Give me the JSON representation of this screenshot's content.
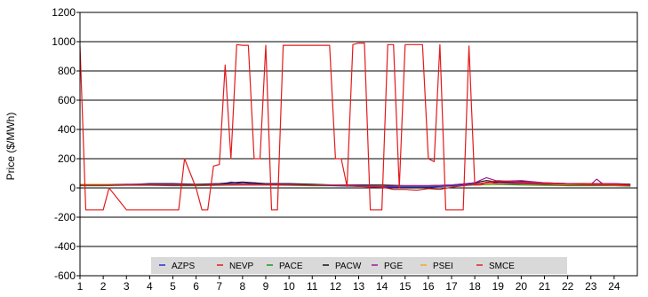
{
  "chart_data": {
    "type": "line",
    "xlabel": "",
    "ylabel": "Price ($/MWh)",
    "ylim": [
      -600,
      1200
    ],
    "yticks": [
      -600,
      -400,
      -200,
      0,
      200,
      400,
      600,
      800,
      1000,
      1200
    ],
    "xlim": [
      1,
      25
    ],
    "xticks": [
      1,
      2,
      3,
      4,
      5,
      6,
      7,
      8,
      9,
      10,
      11,
      12,
      13,
      14,
      15,
      16,
      17,
      18,
      19,
      20,
      21,
      22,
      23,
      24
    ],
    "grid": "horizontal",
    "legend_position": "bottom",
    "series": [
      {
        "name": "AZPS",
        "color": "#2b2bd6",
        "x": [
          1,
          2,
          3,
          4,
          5,
          6,
          7,
          7.5,
          8,
          8.5,
          9,
          10,
          11,
          12,
          13,
          14,
          15,
          16,
          17,
          18,
          19,
          20,
          21,
          22,
          23,
          24,
          24.7
        ],
        "y": [
          20,
          20,
          22,
          20,
          18,
          20,
          22,
          40,
          30,
          35,
          25,
          25,
          20,
          15,
          10,
          5,
          5,
          5,
          15,
          30,
          40,
          35,
          30,
          25,
          25,
          25,
          20
        ]
      },
      {
        "name": "NEVP",
        "color": "#e41a1c",
        "x": [
          1,
          1.25,
          1.5,
          2,
          2.25,
          3,
          4,
          5,
          5.25,
          5.5,
          6,
          6.25,
          6.5,
          6.75,
          7,
          7.25,
          7.5,
          7.75,
          8,
          8.25,
          8.5,
          8.75,
          9,
          9.25,
          9.5,
          9.75,
          10,
          11,
          11.75,
          12,
          12.25,
          12.5,
          12.75,
          13,
          13.25,
          13.5,
          13.75,
          14,
          14.25,
          14.5,
          14.75,
          15,
          15.75,
          16,
          16.25,
          16.5,
          16.75,
          17,
          17.25,
          17.5,
          17.75,
          18,
          18.25,
          18.5,
          19,
          20,
          21,
          22,
          23,
          24,
          24.7
        ],
        "y": [
          970,
          -150,
          -150,
          -150,
          0,
          -150,
          -150,
          -150,
          -150,
          200,
          0,
          -150,
          -150,
          150,
          160,
          840,
          200,
          980,
          975,
          975,
          200,
          200,
          975,
          -150,
          -150,
          975,
          975,
          975,
          975,
          200,
          200,
          10,
          980,
          990,
          990,
          -150,
          -150,
          -150,
          980,
          980,
          0,
          980,
          980,
          200,
          180,
          980,
          -150,
          -150,
          -150,
          -150,
          970,
          20,
          20,
          40,
          30,
          30,
          25,
          25,
          30,
          25,
          20
        ]
      },
      {
        "name": "PACE",
        "color": "#1a9a1a",
        "x": [
          1,
          2,
          3,
          4,
          5,
          6,
          7,
          8,
          9,
          10,
          11,
          12,
          13,
          14,
          15,
          16,
          17,
          18,
          19,
          20,
          21,
          22,
          23,
          24,
          24.7
        ],
        "y": [
          15,
          15,
          18,
          18,
          15,
          15,
          18,
          20,
          20,
          18,
          15,
          15,
          12,
          10,
          10,
          10,
          12,
          20,
          25,
          20,
          18,
          15,
          15,
          15,
          12
        ]
      },
      {
        "name": "PACW",
        "color": "#111111",
        "x": [
          1,
          2,
          3,
          4,
          5,
          6,
          7,
          7.5,
          8,
          9,
          10,
          11,
          12,
          13,
          14,
          15,
          16,
          17,
          18,
          18.5,
          19,
          20,
          21,
          22,
          23,
          24,
          24.7
        ],
        "y": [
          20,
          20,
          22,
          30,
          30,
          25,
          30,
          35,
          40,
          30,
          30,
          25,
          20,
          20,
          20,
          15,
          15,
          20,
          35,
          50,
          40,
          45,
          35,
          30,
          30,
          30,
          25
        ]
      },
      {
        "name": "PGE",
        "color": "#9a1a9a",
        "x": [
          1,
          2,
          3,
          4,
          5,
          6,
          7,
          8,
          9,
          10,
          11,
          12,
          13,
          14,
          15,
          16,
          17,
          18,
          18.5,
          19,
          20,
          21,
          22,
          23,
          23.25,
          23.5,
          24,
          24.7
        ],
        "y": [
          20,
          20,
          25,
          25,
          25,
          22,
          25,
          30,
          25,
          25,
          20,
          20,
          15,
          10,
          15,
          15,
          20,
          35,
          70,
          45,
          50,
          35,
          30,
          25,
          60,
          30,
          30,
          20
        ]
      },
      {
        "name": "PSEI",
        "color": "#f5a623",
        "x": [
          1,
          2,
          3,
          4,
          5,
          6,
          7,
          8,
          9,
          10,
          11,
          12,
          13,
          14,
          15,
          16,
          17,
          18,
          19,
          20,
          21,
          22,
          23,
          24,
          24.7
        ],
        "y": [
          25,
          25,
          25,
          25,
          25,
          22,
          25,
          25,
          25,
          25,
          22,
          20,
          18,
          15,
          15,
          15,
          18,
          25,
          30,
          28,
          25,
          22,
          20,
          18,
          15
        ]
      },
      {
        "name": "SMCE",
        "color": "#d62728",
        "x": [
          1,
          2,
          3,
          4,
          5,
          6,
          7,
          8,
          9,
          10,
          11,
          12,
          13,
          14,
          14.5,
          15,
          15.5,
          16,
          16.5,
          17,
          18,
          19,
          20,
          21,
          22,
          23,
          24,
          24.7
        ],
        "y": [
          20,
          20,
          20,
          20,
          20,
          20,
          20,
          20,
          20,
          20,
          20,
          20,
          10,
          5,
          -10,
          -10,
          -15,
          -5,
          -10,
          5,
          25,
          50,
          40,
          35,
          25,
          20,
          20,
          15
        ]
      }
    ]
  }
}
